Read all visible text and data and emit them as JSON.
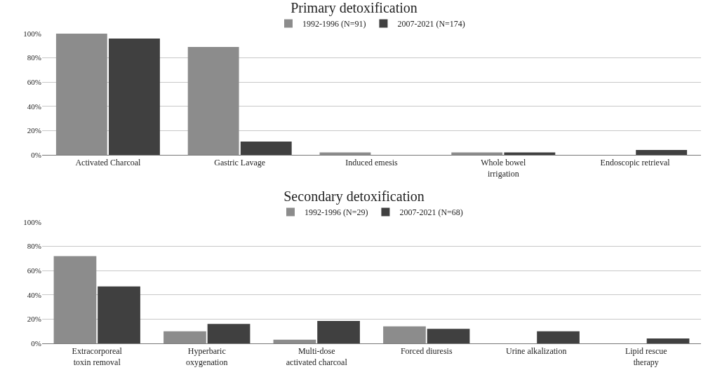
{
  "chart_data": [
    {
      "type": "bar",
      "title": "Primary detoxification",
      "categories": [
        "Activated Charcoal",
        "Gastric Lavage",
        "Induced emesis",
        "Whole bowel\nirrigation",
        "Endoscopic retrieval"
      ],
      "series": [
        {
          "name": "1992-1996 (N=91)",
          "color": "#8c8c8c",
          "values": [
            100,
            89,
            2,
            2,
            0
          ]
        },
        {
          "name": "2007-2021 (N=174)",
          "color": "#404040",
          "values": [
            96,
            11,
            0,
            2,
            4
          ]
        }
      ],
      "ylim": [
        0,
        100
      ],
      "yticks": [
        {
          "value": 0,
          "label": "0%"
        },
        {
          "value": 20,
          "label": "20%"
        },
        {
          "value": 40,
          "label": "40%"
        },
        {
          "value": 60,
          "label": "60%"
        },
        {
          "value": 80,
          "label": "80%"
        },
        {
          "value": 100,
          "label": "100%"
        }
      ],
      "grid": "y",
      "legend": "top"
    },
    {
      "type": "bar",
      "title": "Secondary detoxification",
      "categories": [
        "Extracorporeal\ntoxin removal",
        "Hyperbaric\noxygenation",
        "Multi-dose\nactivated charcoal",
        "Forced diuresis",
        "Urine alkalization",
        "Lipid rescue\ntherapy"
      ],
      "series": [
        {
          "name": "1992-1996 (N=29)",
          "color": "#8c8c8c",
          "values": [
            72,
            10,
            3,
            14,
            0,
            0
          ]
        },
        {
          "name": "2007-2021 (N=68)",
          "color": "#404040",
          "values": [
            47,
            16,
            18.5,
            12,
            10,
            4
          ]
        }
      ],
      "ylim": [
        0,
        100
      ],
      "yticks": [
        {
          "value": 0,
          "label": "0%"
        },
        {
          "value": 20,
          "label": "20%"
        },
        {
          "value": 40,
          "label": "40%"
        },
        {
          "value": 60,
          "label": "60%"
        },
        {
          "value": 80,
          "label": "80%"
        },
        {
          "value": 100,
          "label": "100%"
        }
      ],
      "grid": "y",
      "legend": "top"
    }
  ]
}
